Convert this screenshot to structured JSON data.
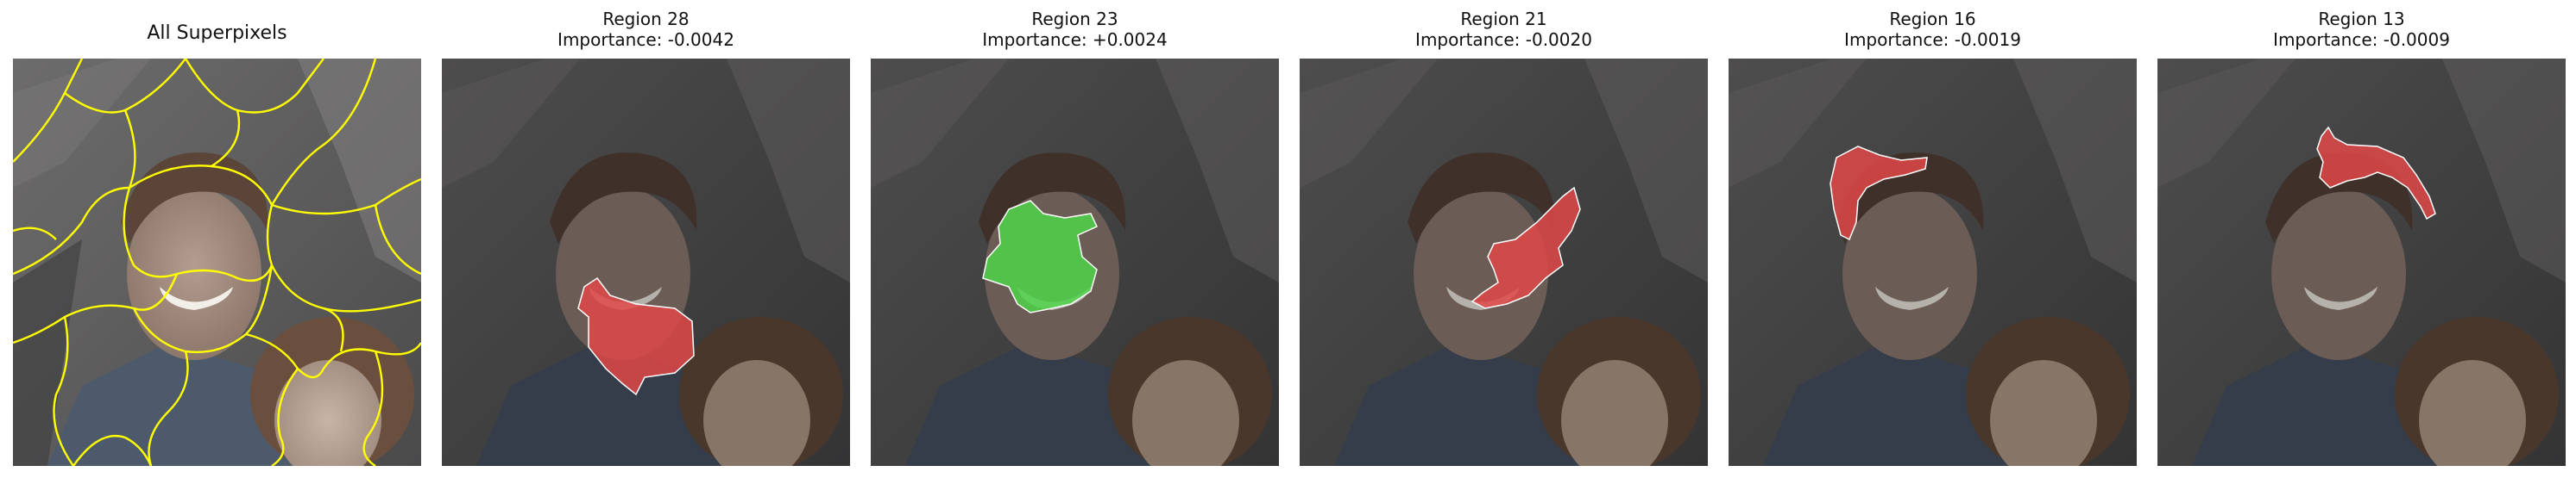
{
  "figure": {
    "panels": [
      {
        "title": "All Superpixels"
      },
      {
        "title": "Region 28",
        "subtitle": "Importance: -0.0042",
        "highlight_color": "#e04848"
      },
      {
        "title": "Region 23",
        "subtitle": "Importance: +0.0024",
        "highlight_color": "#4fd44a"
      },
      {
        "title": "Region 21",
        "subtitle": "Importance: -0.0020",
        "highlight_color": "#e04848"
      },
      {
        "title": "Region 16",
        "subtitle": "Importance: -0.0019",
        "highlight_color": "#e04848"
      },
      {
        "title": "Region 13",
        "subtitle": "Importance: -0.0009",
        "highlight_color": "#e04848"
      }
    ],
    "colors": {
      "boundary": "#ffff00",
      "negative": "#e04848",
      "positive": "#4fd44a",
      "highlight_outline": "#ffffff"
    }
  }
}
